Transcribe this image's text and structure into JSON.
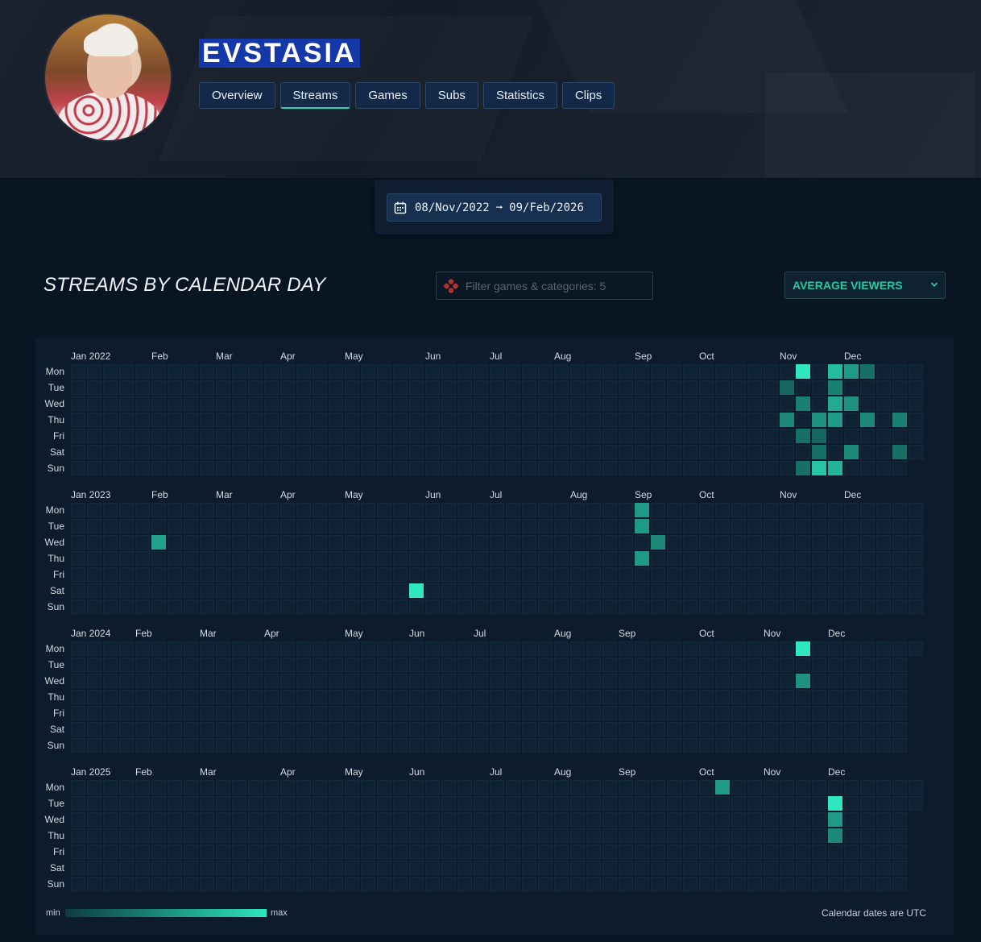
{
  "channel": {
    "name": "EVSTASIA"
  },
  "tabs": [
    {
      "label": "Overview",
      "active": false
    },
    {
      "label": "Streams",
      "active": true
    },
    {
      "label": "Games",
      "active": false
    },
    {
      "label": "Subs",
      "active": false
    },
    {
      "label": "Statistics",
      "active": false
    },
    {
      "label": "Clips",
      "active": false
    }
  ],
  "date_range": {
    "start": "08/Nov/2022",
    "end": "09/Feb/2026"
  },
  "section": {
    "title": "STREAMS BY CALENDAR DAY",
    "filter_placeholder": "Filter games & categories: 5",
    "metric_selected": "AVERAGE VIEWERS"
  },
  "day_labels": [
    "Mon",
    "Tue",
    "Wed",
    "Thu",
    "Fri",
    "Sat",
    "Sun"
  ],
  "chart_data": {
    "type": "heatmap",
    "metric": "AVERAGE VIEWERS",
    "scale": {
      "min_label": "min",
      "max_label": "max",
      "min_color": "#0d3d3e",
      "max_color": "#2ee6c0"
    },
    "years": [
      {
        "first_month_label": "Jan 2022",
        "weeks": 53,
        "last_week_days": 6,
        "months": [
          {
            "label": "Jan 2022",
            "week": 0
          },
          {
            "label": "Feb",
            "week": 5
          },
          {
            "label": "Mar",
            "week": 9
          },
          {
            "label": "Apr",
            "week": 13
          },
          {
            "label": "May",
            "week": 17
          },
          {
            "label": "Jun",
            "week": 22
          },
          {
            "label": "Jul",
            "week": 26
          },
          {
            "label": "Aug",
            "week": 30
          },
          {
            "label": "Sep",
            "week": 35
          },
          {
            "label": "Oct",
            "week": 39
          },
          {
            "label": "Nov",
            "week": 44
          },
          {
            "label": "Dec",
            "week": 48
          }
        ],
        "values": [
          {
            "week": 45,
            "day": 0,
            "value": 1.0
          },
          {
            "week": 47,
            "day": 0,
            "value": 0.75
          },
          {
            "week": 48,
            "day": 0,
            "value": 0.55
          },
          {
            "week": 49,
            "day": 0,
            "value": 0.3
          },
          {
            "week": 44,
            "day": 1,
            "value": 0.25
          },
          {
            "week": 47,
            "day": 1,
            "value": 0.4
          },
          {
            "week": 45,
            "day": 2,
            "value": 0.4
          },
          {
            "week": 47,
            "day": 2,
            "value": 0.65
          },
          {
            "week": 48,
            "day": 2,
            "value": 0.5
          },
          {
            "week": 44,
            "day": 3,
            "value": 0.45
          },
          {
            "week": 46,
            "day": 3,
            "value": 0.5
          },
          {
            "week": 47,
            "day": 3,
            "value": 0.55
          },
          {
            "week": 49,
            "day": 3,
            "value": 0.45
          },
          {
            "week": 51,
            "day": 3,
            "value": 0.4
          },
          {
            "week": 45,
            "day": 4,
            "value": 0.3
          },
          {
            "week": 46,
            "day": 4,
            "value": 0.25
          },
          {
            "week": 46,
            "day": 5,
            "value": 0.3
          },
          {
            "week": 48,
            "day": 5,
            "value": 0.45
          },
          {
            "week": 51,
            "day": 5,
            "value": 0.3
          },
          {
            "week": 45,
            "day": 6,
            "value": 0.3
          },
          {
            "week": 46,
            "day": 6,
            "value": 0.8
          },
          {
            "week": 47,
            "day": 6,
            "value": 0.7
          }
        ]
      },
      {
        "first_month_label": "Jan 2023",
        "weeks": 53,
        "last_week_days": 7,
        "months": [
          {
            "label": "Jan 2023",
            "week": 0
          },
          {
            "label": "Feb",
            "week": 5
          },
          {
            "label": "Mar",
            "week": 9
          },
          {
            "label": "Apr",
            "week": 13
          },
          {
            "label": "May",
            "week": 17
          },
          {
            "label": "Jun",
            "week": 22
          },
          {
            "label": "Jul",
            "week": 26
          },
          {
            "label": "Aug",
            "week": 31
          },
          {
            "label": "Sep",
            "week": 35
          },
          {
            "label": "Oct",
            "week": 39
          },
          {
            "label": "Nov",
            "week": 44
          },
          {
            "label": "Dec",
            "week": 48
          }
        ],
        "values": [
          {
            "week": 35,
            "day": 0,
            "value": 0.55
          },
          {
            "week": 35,
            "day": 1,
            "value": 0.55
          },
          {
            "week": 5,
            "day": 2,
            "value": 0.6
          },
          {
            "week": 36,
            "day": 2,
            "value": 0.45
          },
          {
            "week": 35,
            "day": 3,
            "value": 0.55
          },
          {
            "week": 21,
            "day": 5,
            "value": 1.0
          }
        ]
      },
      {
        "first_month_label": "Jan 2024",
        "weeks": 53,
        "last_week_days": 1,
        "months": [
          {
            "label": "Jan 2024",
            "week": 0
          },
          {
            "label": "Feb",
            "week": 4
          },
          {
            "label": "Mar",
            "week": 8
          },
          {
            "label": "Apr",
            "week": 12
          },
          {
            "label": "May",
            "week": 17
          },
          {
            "label": "Jun",
            "week": 21
          },
          {
            "label": "Jul",
            "week": 25
          },
          {
            "label": "Aug",
            "week": 30
          },
          {
            "label": "Sep",
            "week": 34
          },
          {
            "label": "Oct",
            "week": 39
          },
          {
            "label": "Nov",
            "week": 43
          },
          {
            "label": "Dec",
            "week": 47
          }
        ],
        "values": [
          {
            "week": 45,
            "day": 0,
            "value": 1.0
          },
          {
            "week": 45,
            "day": 2,
            "value": 0.5
          }
        ]
      },
      {
        "first_month_label": "Jan 2025",
        "weeks": 53,
        "last_week_days": 2,
        "months": [
          {
            "label": "Jan 2025",
            "week": 0
          },
          {
            "label": "Feb",
            "week": 4
          },
          {
            "label": "Mar",
            "week": 8
          },
          {
            "label": "Apr",
            "week": 13
          },
          {
            "label": "May",
            "week": 17
          },
          {
            "label": "Jun",
            "week": 21
          },
          {
            "label": "Jul",
            "week": 26
          },
          {
            "label": "Aug",
            "week": 30
          },
          {
            "label": "Sep",
            "week": 34
          },
          {
            "label": "Oct",
            "week": 39
          },
          {
            "label": "Nov",
            "week": 43
          },
          {
            "label": "Dec",
            "week": 47
          }
        ],
        "values": [
          {
            "week": 40,
            "day": 0,
            "value": 0.55
          },
          {
            "week": 47,
            "day": 1,
            "value": 1.0
          },
          {
            "week": 47,
            "day": 2,
            "value": 0.55
          },
          {
            "week": 47,
            "day": 3,
            "value": 0.45
          }
        ]
      }
    ]
  },
  "legend": {
    "min": "min",
    "max": "max"
  },
  "footer_note": "Calendar dates are UTC"
}
